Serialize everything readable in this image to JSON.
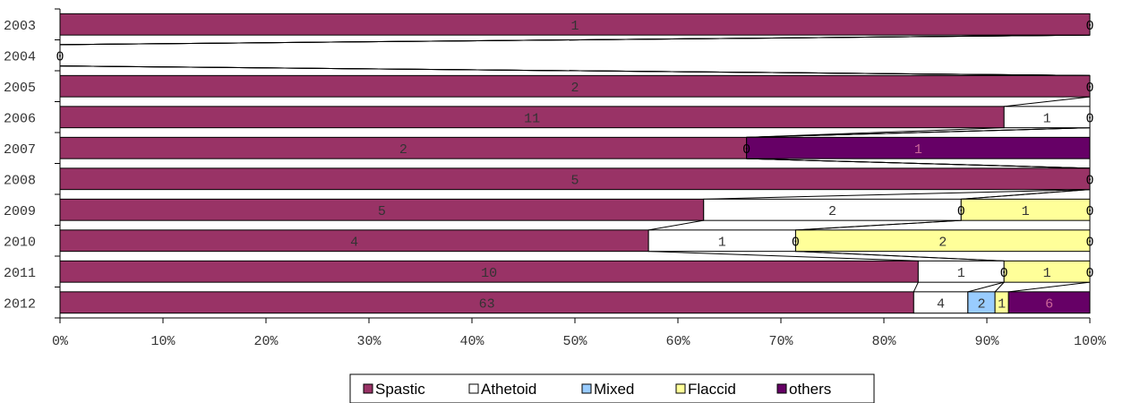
{
  "chart_data": {
    "type": "bar",
    "orientation": "horizontal",
    "stacked": "percent",
    "categories": [
      "2003",
      "2004",
      "2005",
      "2006",
      "2007",
      "2008",
      "2009",
      "2010",
      "2011",
      "2012"
    ],
    "series": [
      {
        "name": "Spastic",
        "color": "#993366",
        "label_color": "#333333",
        "values": [
          1,
          0,
          2,
          11,
          2,
          5,
          5,
          4,
          10,
          63
        ]
      },
      {
        "name": "Athetoid",
        "color": "#ffffff",
        "label_color": "#333333",
        "values": [
          0,
          0,
          0,
          1,
          0,
          0,
          2,
          1,
          1,
          4
        ]
      },
      {
        "name": "Mixed",
        "color": "#99ccff",
        "label_color": "#333333",
        "values": [
          0,
          0,
          0,
          0,
          0,
          0,
          0,
          0,
          0,
          2
        ]
      },
      {
        "name": "Flaccid",
        "color": "#ffff99",
        "label_color": "#333333",
        "values": [
          0,
          0,
          0,
          0,
          0,
          0,
          1,
          2,
          1,
          1
        ]
      },
      {
        "name": "others",
        "color": "#660066",
        "label_color": "#cc6699",
        "values": [
          0,
          0,
          0,
          0,
          1,
          0,
          0,
          0,
          0,
          6
        ]
      }
    ],
    "zero_labels": [
      {
        "category": "2003",
        "series": "others"
      },
      {
        "category": "2004",
        "series": "Spastic"
      },
      {
        "category": "2005",
        "series": "others"
      },
      {
        "category": "2006",
        "series": "others"
      },
      {
        "category": "2007",
        "series": "Athetoid"
      },
      {
        "category": "2008",
        "series": "others"
      },
      {
        "category": "2009",
        "series": "Mixed"
      },
      {
        "category": "2009",
        "series": "others"
      },
      {
        "category": "2010",
        "series": "Mixed"
      },
      {
        "category": "2010",
        "series": "others"
      },
      {
        "category": "2011",
        "series": "Mixed"
      },
      {
        "category": "2011",
        "series": "others"
      }
    ],
    "x_ticks": [
      "0%",
      "10%",
      "20%",
      "30%",
      "40%",
      "50%",
      "60%",
      "70%",
      "80%",
      "90%",
      "100%"
    ],
    "xlim": [
      0,
      100
    ],
    "series_lines": true,
    "grid": false,
    "legend": "bottom"
  }
}
